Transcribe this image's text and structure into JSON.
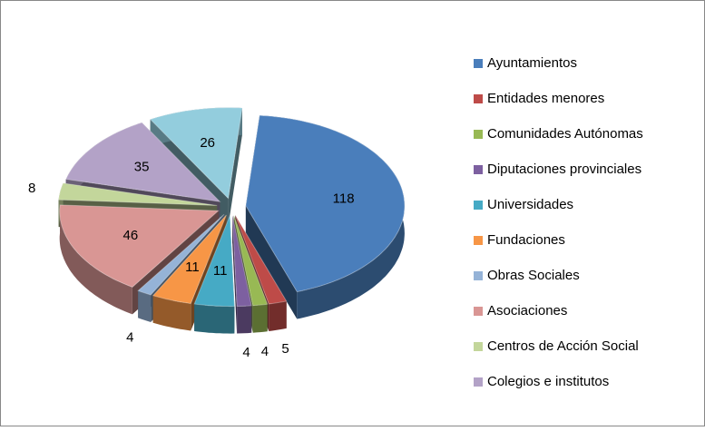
{
  "chart_data": {
    "type": "pie3d",
    "categories": [
      "Ayuntamientos",
      "Entidades menores",
      "Comunidades Autónomas",
      "Diputaciones provinciales",
      "Universidades",
      "Fundaciones",
      "Obras Sociales",
      "Asociaciones",
      "Centros de Acción Social",
      "Colegios e institutos",
      null
    ],
    "values": [
      118,
      5,
      4,
      4,
      11,
      11,
      4,
      46,
      8,
      35,
      26
    ],
    "colors": [
      "#4a7ebb",
      "#be4b48",
      "#98b954",
      "#7d60a0",
      "#46aac5",
      "#f79646",
      "#95b3d7",
      "#d99694",
      "#c3d69b",
      "#b3a2c7",
      "#93cddd"
    ],
    "legend": "right"
  }
}
